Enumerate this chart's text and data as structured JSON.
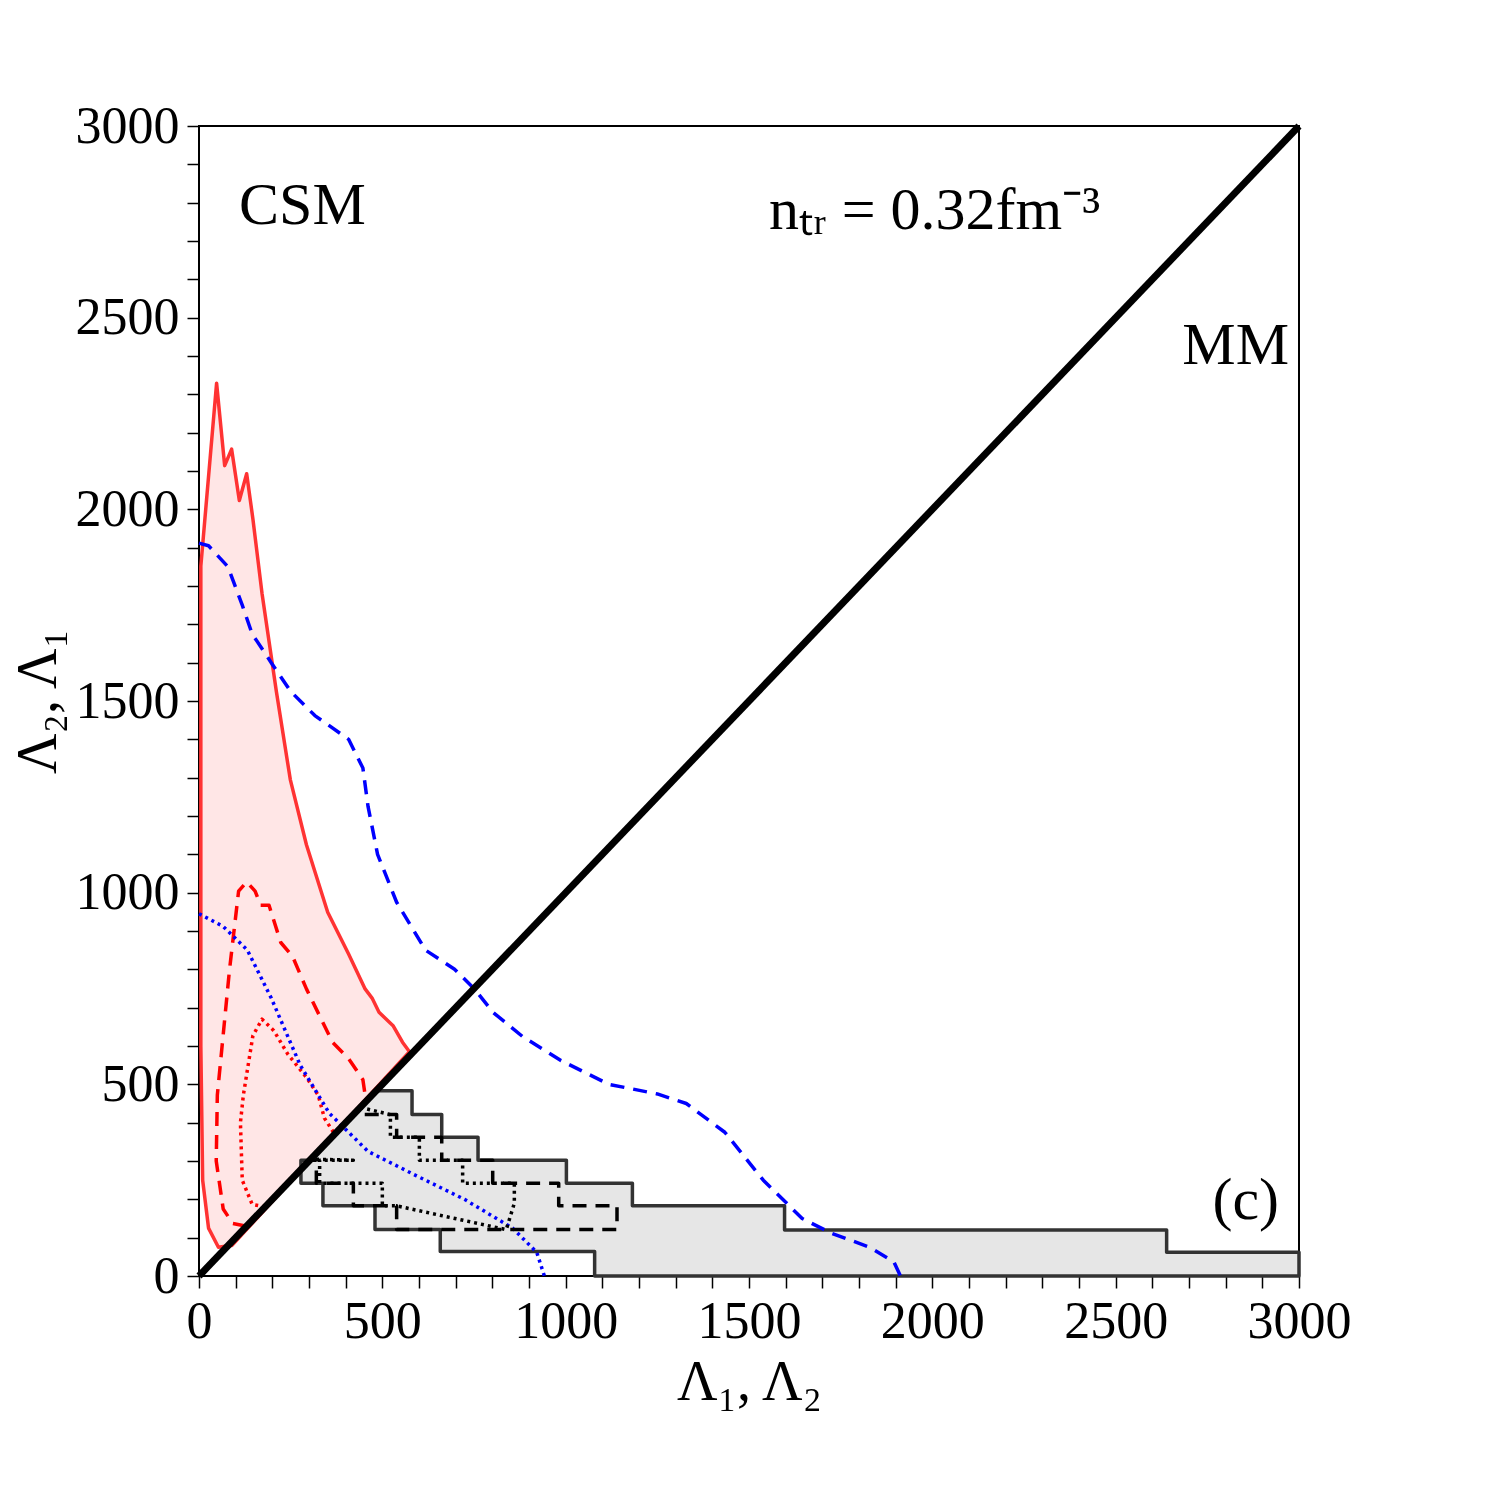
{
  "chart_data": {
    "type": "line",
    "xlabel": "Λ₁, Λ₂",
    "ylabel": "Λ₂, Λ₁",
    "xlim": [
      0,
      3000
    ],
    "ylim": [
      0,
      3000
    ],
    "xticks": [
      0,
      {
        "value": 100,
        "label": null
      },
      {
        "value": 200,
        "label": null
      },
      {
        "value": 300,
        "label": null
      },
      {
        "value": 400,
        "label": null
      },
      500,
      {
        "value": 600,
        "label": null
      },
      {
        "value": 700,
        "label": null
      },
      {
        "value": 800,
        "label": null
      },
      {
        "value": 900,
        "label": null
      },
      1000,
      {
        "value": 1100,
        "label": null
      },
      {
        "value": 1200,
        "label": null
      },
      {
        "value": 1300,
        "label": null
      },
      {
        "value": 1400,
        "label": null
      },
      1500,
      {
        "value": 1600,
        "label": null
      },
      {
        "value": 1700,
        "label": null
      },
      {
        "value": 1800,
        "label": null
      },
      {
        "value": 1900,
        "label": null
      },
      2000,
      {
        "value": 2100,
        "label": null
      },
      {
        "value": 2200,
        "label": null
      },
      {
        "value": 2300,
        "label": null
      },
      {
        "value": 2400,
        "label": null
      },
      2500,
      {
        "value": 2600,
        "label": null
      },
      {
        "value": 2700,
        "label": null
      },
      {
        "value": 2800,
        "label": null
      },
      {
        "value": 2900,
        "label": null
      },
      3000
    ],
    "yticks": [
      0,
      {
        "value": 100,
        "label": null
      },
      {
        "value": 200,
        "label": null
      },
      {
        "value": 300,
        "label": null
      },
      {
        "value": 400,
        "label": null
      },
      500,
      {
        "value": 600,
        "label": null
      },
      {
        "value": 700,
        "label": null
      },
      {
        "value": 800,
        "label": null
      },
      {
        "value": 900,
        "label": null
      },
      1000,
      {
        "value": 1100,
        "label": null
      },
      {
        "value": 1200,
        "label": null
      },
      {
        "value": 1300,
        "label": null
      },
      {
        "value": 1400,
        "label": null
      },
      1500,
      {
        "value": 1600,
        "label": null
      },
      {
        "value": 1700,
        "label": null
      },
      {
        "value": 1800,
        "label": null
      },
      {
        "value": 1900,
        "label": null
      },
      2000,
      {
        "value": 2100,
        "label": null
      },
      {
        "value": 2200,
        "label": null
      },
      {
        "value": 2300,
        "label": null
      },
      {
        "value": 2400,
        "label": null
      },
      2500,
      {
        "value": 2600,
        "label": null
      },
      {
        "value": 2700,
        "label": null
      },
      {
        "value": 2800,
        "label": null
      },
      {
        "value": 2900,
        "label": null
      },
      3000
    ],
    "grid": false,
    "marker": "none",
    "annotations": [
      "CSM",
      "nₜᵣ = 0.32fm⁻³",
      "MM",
      "(c)"
    ],
    "series": [
      {
        "type": "area",
        "color": "#ff3333",
        "line_style": "solid",
        "x": [
          90,
          53,
          26,
          10,
          5,
          5,
          48,
          70,
          89,
          110,
          130,
          147,
          172,
          211,
          249,
          293,
          351,
          408,
          453,
          472,
          491,
          530,
          555,
          574,
          90
        ],
        "values": [
          80,
          75,
          125,
          250,
          600,
          1852,
          2329,
          2114,
          2157,
          2023,
          2093,
          1975,
          1780,
          1525,
          1295,
          1125,
          949,
          840,
          749,
          725,
          688,
          652,
          610,
          585,
          80
        ]
      },
      {
        "type": "area",
        "color": "#333333",
        "line_style": "solid",
        "x": [
          300,
          487,
          581,
          581,
          662,
          662,
          761,
          761,
          1002,
          1002,
          1182,
          1182,
          1597,
          1597,
          2639,
          2639,
          3000,
          3000,
          1079,
          1079,
          658,
          658,
          480,
          480,
          338,
          338,
          278,
          278,
          300
        ],
        "values": [
          302,
          483,
          483,
          421,
          421,
          362,
          362,
          302,
          302,
          242,
          242,
          183,
          183,
          120,
          120,
          62,
          62,
          0,
          0,
          64,
          64,
          121,
          121,
          183,
          183,
          242,
          242,
          302,
          302
        ]
      },
      {
        "color": "#ff0000",
        "line_style": "dashed",
        "x": [
          130,
          92,
          66,
          47,
          50,
          83,
          108,
          130,
          153,
          168,
          191,
          223,
          255,
          293,
          364,
          408,
          447,
          453
        ],
        "values": [
          130,
          137,
          175,
          300,
          472,
          797,
          1004,
          1028,
          1004,
          967,
          967,
          870,
          834,
          749,
          610,
          567,
          512,
          472
        ]
      },
      {
        "color": "#ff0000",
        "line_style": "dotted",
        "x": [
          180,
          145,
          118,
          113,
          121,
          147,
          172,
          204,
          242,
          293,
          325,
          342,
          370
        ],
        "values": [
          180,
          187,
          250,
          400,
          472,
          627,
          670,
          640,
          579,
          518,
          472,
          412,
          370
        ]
      },
      {
        "color": "#0000ff",
        "line_style": "dashed",
        "x": [
          0,
          26,
          79,
          118,
          145,
          197,
          250,
          316,
          408,
          447,
          461,
          487,
          539,
          618,
          697,
          750,
          803,
          882,
          987,
          1118,
          1250,
          1329,
          1434,
          1539,
          1645,
          1724,
          1829,
          1895,
          1913
        ],
        "values": [
          1912,
          1905,
          1850,
          1750,
          1675,
          1600,
          1525,
          1462,
          1400,
          1325,
          1225,
          1100,
          975,
          850,
          800,
          750,
          687,
          625,
          562,
          500,
          475,
          450,
          375,
          250,
          150,
          112,
          75,
          37,
          0
        ]
      },
      {
        "color": "#0000ff",
        "line_style": "dotted",
        "x": [
          0,
          66,
          132,
          197,
          276,
          355,
          461,
          592,
          724,
          855,
          921,
          942
        ],
        "values": [
          945,
          912,
          850,
          725,
          550,
          425,
          325,
          262,
          200,
          125,
          62,
          0
        ]
      },
      {
        "color": "#000000",
        "line_style": "dashed",
        "x": [
          452,
          539,
          539,
          662,
          662,
          801,
          801,
          981,
          981,
          1140,
          1140,
          539,
          539,
          421,
          421,
          320,
          320,
          300
        ],
        "values": [
          421,
          421,
          362,
          362,
          302,
          302,
          242,
          242,
          183,
          183,
          121,
          121,
          183,
          183,
          242,
          242,
          302,
          302
        ]
      },
      {
        "color": "#000000",
        "line_style": "dotted",
        "x": [
          440,
          522,
          522,
          601,
          601,
          719,
          719,
          860,
          860,
          838,
          539,
          500,
          500,
          329,
          329,
          421,
          305
        ],
        "values": [
          440,
          421,
          362,
          362,
          302,
          302,
          242,
          242,
          190,
          121,
          183,
          183,
          242,
          242,
          302,
          302,
          305
        ]
      },
      {
        "color": "#000000",
        "line_style": "solid",
        "x": [
          0,
          3000
        ],
        "values": [
          0,
          3000
        ]
      }
    ]
  }
}
